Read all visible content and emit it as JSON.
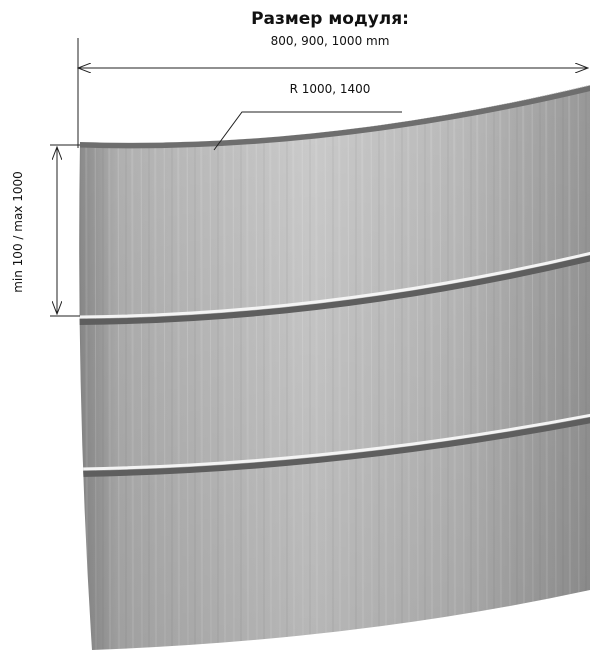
{
  "header": {
    "title": "Размер модуля:",
    "subtitle": "800, 900, 1000 mm"
  },
  "dimensions": {
    "radius": "R 1000, 1400",
    "height": "min 100 / max 1000"
  }
}
